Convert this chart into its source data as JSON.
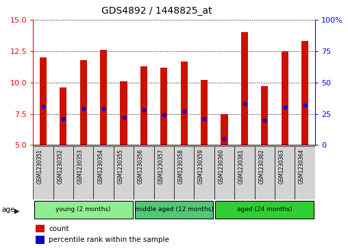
{
  "title": "GDS4892 / 1448825_at",
  "samples": [
    "GSM1230351",
    "GSM1230352",
    "GSM1230353",
    "GSM1230354",
    "GSM1230355",
    "GSM1230356",
    "GSM1230357",
    "GSM1230358",
    "GSM1230359",
    "GSM1230360",
    "GSM1230361",
    "GSM1230362",
    "GSM1230363",
    "GSM1230364"
  ],
  "counts": [
    12.0,
    9.6,
    11.8,
    12.6,
    10.1,
    11.3,
    11.2,
    11.7,
    10.2,
    7.5,
    14.0,
    9.7,
    12.5,
    13.3
  ],
  "percentiles": [
    31,
    21,
    29,
    29,
    22,
    28,
    24,
    27,
    21,
    5,
    33,
    20,
    30,
    32
  ],
  "ylim_left": [
    5,
    15
  ],
  "ylim_right": [
    0,
    100
  ],
  "yticks_left": [
    5,
    7.5,
    10,
    12.5,
    15
  ],
  "yticks_right": [
    0,
    25,
    50,
    75,
    100
  ],
  "groups": [
    {
      "label": "young (2 months)",
      "start": 0,
      "end": 5,
      "color": "#90ee90"
    },
    {
      "label": "middle aged (12 months)",
      "start": 5,
      "end": 9,
      "color": "#50c878"
    },
    {
      "label": "aged (24 months)",
      "start": 9,
      "end": 14,
      "color": "#32cd32"
    }
  ],
  "bar_color": "#cc1100",
  "dot_color": "#0000cc",
  "bar_bottom": 5,
  "background_color": "#ffffff",
  "cell_bg": "#d3d3d3",
  "legend_count_label": "count",
  "legend_percentile_label": "percentile rank within the sample"
}
